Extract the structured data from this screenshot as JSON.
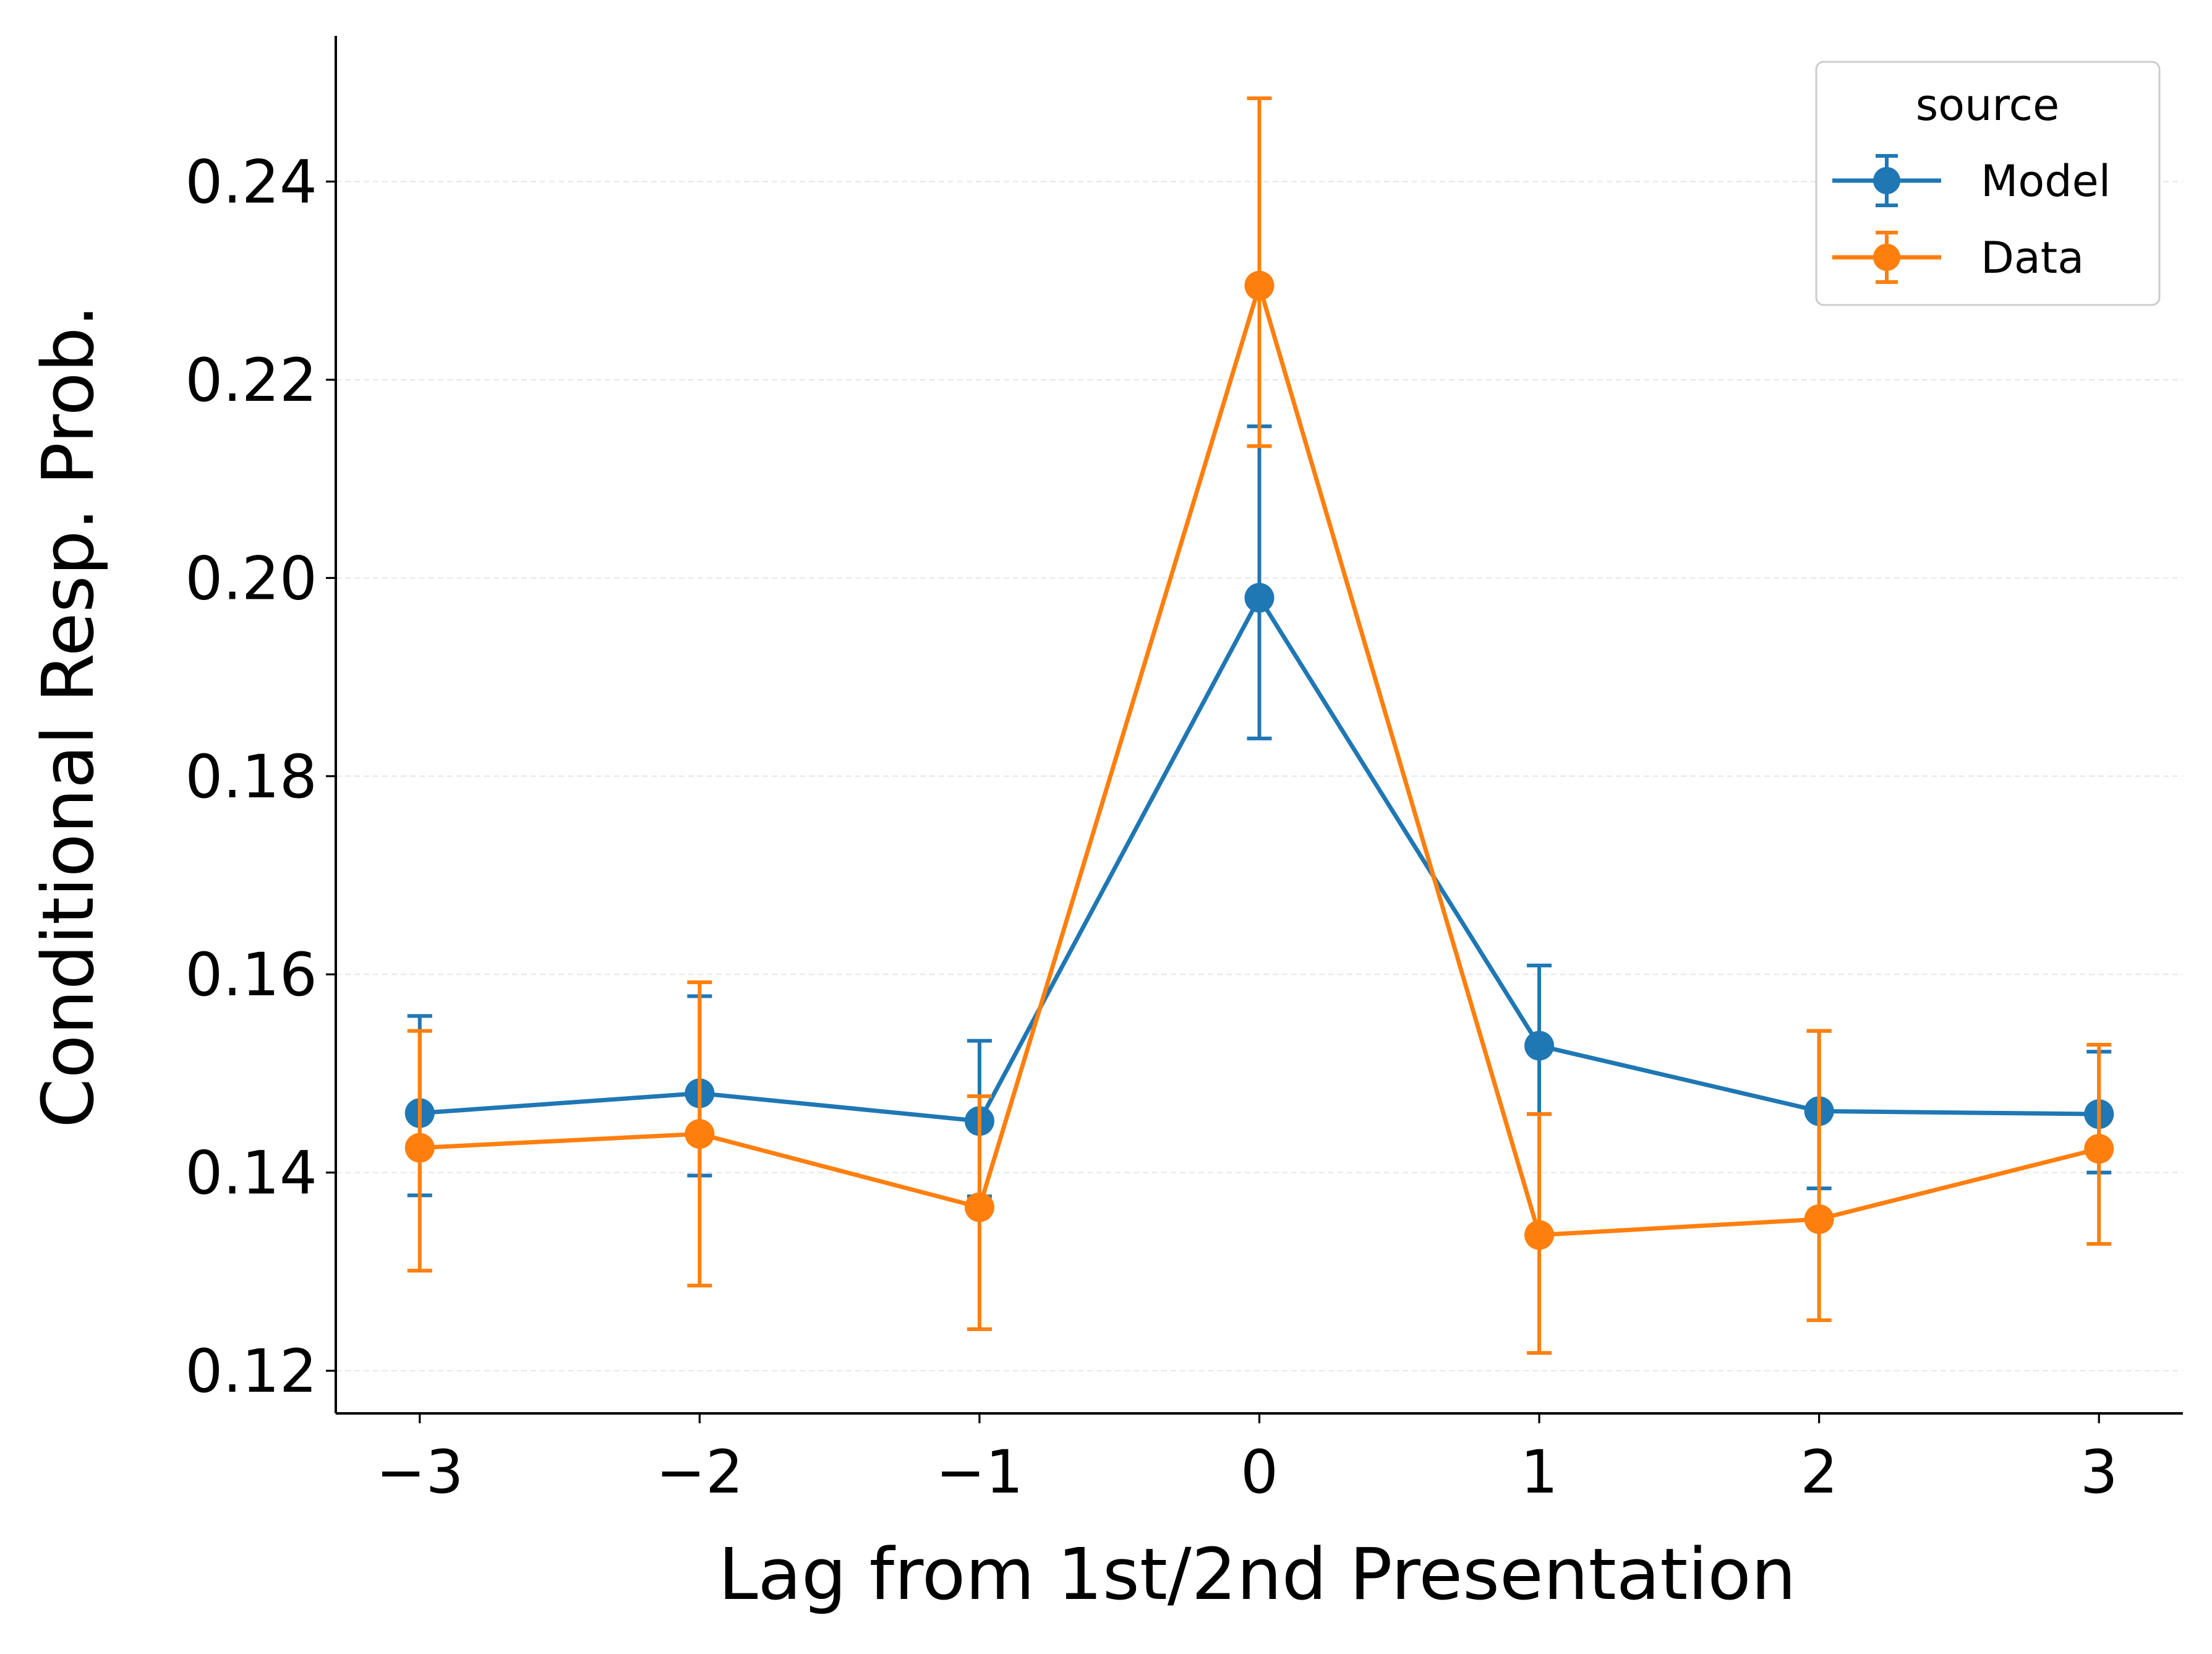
{
  "chart_data": {
    "type": "line",
    "xlabel": "Lag from 1st/2nd Presentation",
    "ylabel": "Conditional Resp. Prob.",
    "xlim": [
      -3.3,
      3.3
    ],
    "ylim": [
      0.1157,
      0.2547
    ],
    "x": [
      -3,
      -2,
      -1,
      0,
      1,
      2,
      3
    ],
    "x_tick_labels": [
      "−3",
      "−2",
      "−1",
      "0",
      "1",
      "2",
      "3"
    ],
    "y_ticks": [
      0.12,
      0.14,
      0.16,
      0.18,
      0.2,
      0.22,
      0.24
    ],
    "y_tick_labels": [
      "0.12",
      "0.14",
      "0.16",
      "0.18",
      "0.20",
      "0.22",
      "0.24"
    ],
    "grid": "y-only, dashed",
    "legend": {
      "title": "source",
      "placement": "top-right"
    },
    "series": [
      {
        "name": "Model",
        "color": "#1f77b4",
        "values": [
          0.146,
          0.148,
          0.1452,
          0.198,
          0.1528,
          0.1462,
          0.1459
        ],
        "err_low": [
          0.1377,
          0.1397,
          0.1376,
          0.1838,
          0.1459,
          0.1384,
          0.14
        ],
        "err_high": [
          0.1558,
          0.1578,
          0.1533,
          0.2153,
          0.1609,
          0.1543,
          0.1522
        ]
      },
      {
        "name": "Data",
        "color": "#ff7f0e",
        "values": [
          0.1425,
          0.1439,
          0.1365,
          0.2295,
          0.1337,
          0.1353,
          0.1424
        ],
        "err_low": [
          0.1301,
          0.1286,
          0.1242,
          0.2133,
          0.1218,
          0.1251,
          0.1328
        ],
        "err_high": [
          0.1543,
          0.1592,
          0.1477,
          0.2484,
          0.1459,
          0.1543,
          0.1529
        ]
      }
    ]
  }
}
